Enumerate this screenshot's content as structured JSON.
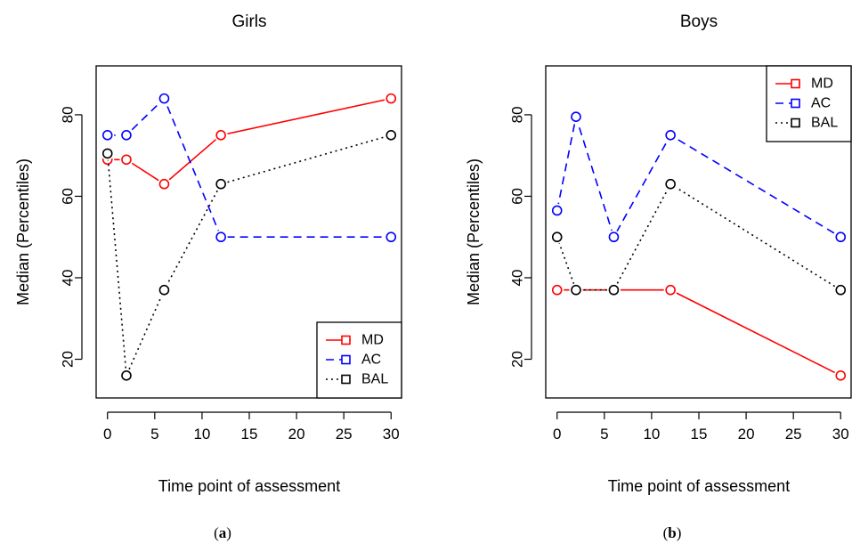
{
  "chart_data": [
    {
      "type": "line",
      "title": "Girls",
      "xlabel": "Time point of assessment",
      "ylabel": "Median (Percentiles)",
      "panel_label": {
        "open": "(",
        "letter": "a",
        "close": ")"
      },
      "x_ticks": [
        0,
        5,
        10,
        15,
        20,
        25,
        30
      ],
      "y_ticks": [
        20,
        40,
        60,
        80
      ],
      "xlim": [
        -1.2,
        31.2
      ],
      "ylim": [
        10.5,
        92
      ],
      "grid": false,
      "legend_position": "bottom-right",
      "series": [
        {
          "name": "MD",
          "color": "#ff0000",
          "dash": "solid",
          "x": [
            0,
            2,
            6,
            12,
            30
          ],
          "y": [
            69,
            69,
            63,
            75,
            84
          ]
        },
        {
          "name": "AC",
          "color": "#0000ff",
          "dash": "dashed",
          "x": [
            0,
            2,
            6,
            12,
            30
          ],
          "y": [
            75,
            75,
            84,
            50,
            50
          ]
        },
        {
          "name": "BAL",
          "color": "#000000",
          "dash": "dotted",
          "x": [
            0,
            2,
            6,
            12,
            30
          ],
          "y": [
            70.5,
            16,
            37,
            63,
            75
          ]
        }
      ]
    },
    {
      "type": "line",
      "title": "Boys",
      "xlabel": "Time point of assessment",
      "ylabel": "Median (Percentiles)",
      "panel_label": {
        "open": "(",
        "letter": "b",
        "close": ")"
      },
      "x_ticks": [
        0,
        5,
        10,
        15,
        20,
        25,
        30
      ],
      "y_ticks": [
        20,
        40,
        60,
        80
      ],
      "xlim": [
        -1.2,
        31.2
      ],
      "ylim": [
        10.5,
        92
      ],
      "grid": false,
      "legend_position": "top-right",
      "series": [
        {
          "name": "MD",
          "color": "#ff0000",
          "dash": "solid",
          "x": [
            0,
            2,
            6,
            12,
            30
          ],
          "y": [
            37,
            37,
            37,
            37,
            16
          ]
        },
        {
          "name": "AC",
          "color": "#0000ff",
          "dash": "dashed",
          "x": [
            0,
            2,
            6,
            12,
            30
          ],
          "y": [
            56.5,
            79.5,
            50,
            75,
            50
          ]
        },
        {
          "name": "BAL",
          "color": "#000000",
          "dash": "dotted",
          "x": [
            0,
            2,
            6,
            12,
            30
          ],
          "y": [
            50,
            37,
            37,
            63,
            37
          ]
        }
      ]
    }
  ]
}
